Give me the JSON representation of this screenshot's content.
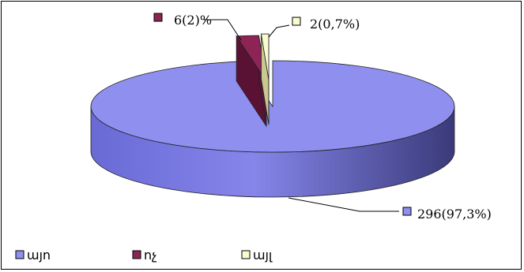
{
  "chart_data": {
    "type": "pie",
    "style": "3d-exploded",
    "slices": [
      {
        "name": "այո",
        "value": 296,
        "label": "296(97,3%)",
        "color": "#8f8ff0",
        "side_color": "#5b5bbd"
      },
      {
        "name": "ոչ",
        "value": 6,
        "label": "6(2)%",
        "color": "#8e2456",
        "side_color": "#5a1234"
      },
      {
        "name": "այլ",
        "value": 2,
        "label": "2(0,7%)",
        "color": "#fbfbd0",
        "side_color": "#c8c890"
      }
    ],
    "legend_position": "bottom-left"
  }
}
